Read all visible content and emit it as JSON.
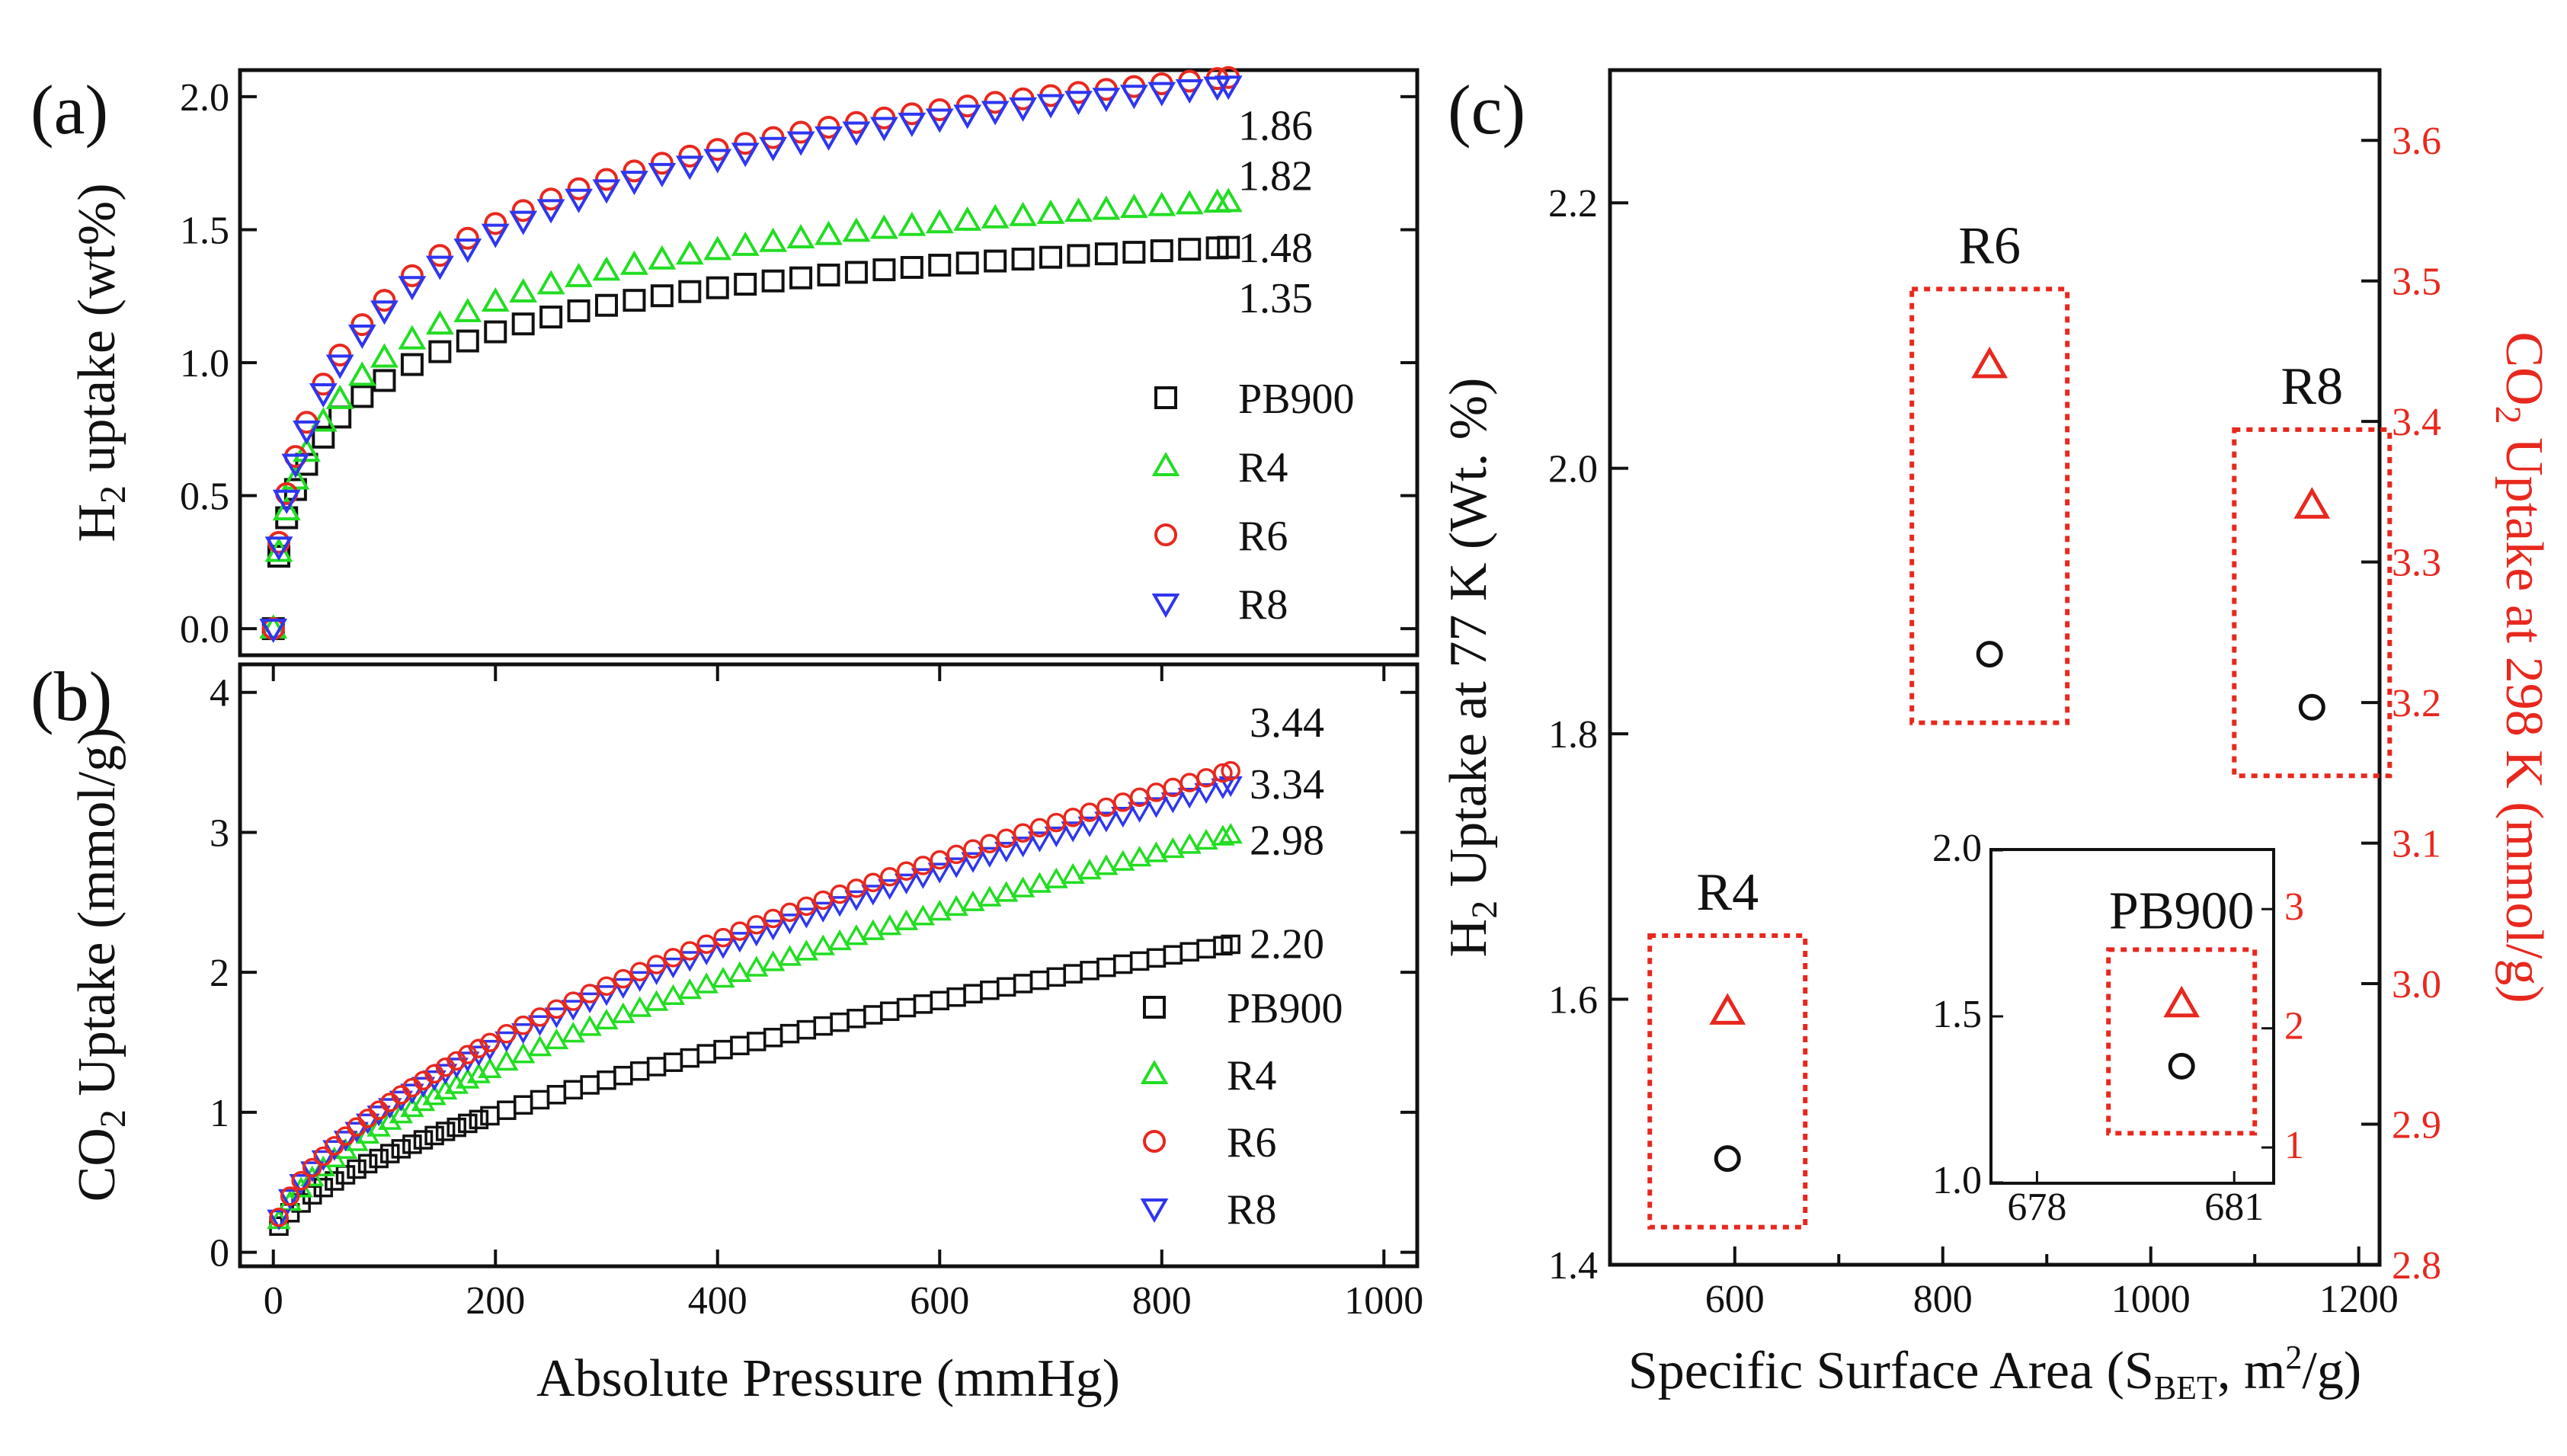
{
  "colors": {
    "PB900": "#111111",
    "R4": "#22dd22",
    "R6": "#e8281e",
    "R8": "#2e36f0",
    "box": "#e8281e",
    "axis_right": "#e8281e"
  },
  "chart_data": [
    {
      "id": "a",
      "type": "scatter",
      "panel_label": "(a)",
      "title": "",
      "xlabel": "",
      "ylabel": "H",
      "ylabel_sub": "2",
      "ylabel_rest": " uptake (wt%)",
      "xlim": [
        -30,
        1030
      ],
      "ylim": [
        -0.1,
        2.1
      ],
      "x_ticks": [],
      "y_ticks": [
        "0.0",
        "0.5",
        "1.0",
        "1.5",
        "2.0"
      ],
      "y_tick_values": [
        0.0,
        0.5,
        1.0,
        1.5,
        2.0
      ],
      "model": "langmuir-freundlich",
      "series": [
        {
          "name": "PB900",
          "marker": "square",
          "qmax": 1.8,
          "b": 0.0113,
          "n": 0.6,
          "end_label": "1.35"
        },
        {
          "name": "R4",
          "marker": "triangle-up",
          "qmax": 2.05,
          "b": 0.0098,
          "n": 0.6,
          "end_label": "1.48"
        },
        {
          "name": "R6",
          "marker": "circle",
          "qmax": 2.79,
          "b": 0.0068,
          "n": 0.6,
          "end_label": "1.86"
        },
        {
          "name": "R8",
          "marker": "triangle-down",
          "qmax": 2.79,
          "b": 0.0062,
          "n": 0.6,
          "end_label": "1.82"
        }
      ],
      "x_points": [
        0,
        5,
        12,
        20,
        30,
        45,
        60,
        80,
        100,
        125,
        150,
        175,
        200,
        225,
        250,
        275,
        300,
        325,
        350,
        375,
        400,
        425,
        450,
        475,
        500,
        525,
        550,
        575,
        600,
        625,
        650,
        675,
        700,
        725,
        750,
        775,
        800,
        825,
        850,
        860
      ],
      "end_values": [
        1.35,
        1.48,
        1.86,
        1.82
      ]
    },
    {
      "id": "b",
      "type": "scatter",
      "panel_label": "(b)",
      "title": "",
      "xlabel": "Absolute Pressure (mmHg)",
      "ylabel": "CO",
      "ylabel_sub": "2",
      "ylabel_rest": " Uptake (mmol/g)",
      "xlim": [
        -30,
        1030
      ],
      "ylim": [
        -0.1,
        4.2
      ],
      "x_ticks": [
        "0",
        "200",
        "400",
        "600",
        "800",
        "1000"
      ],
      "x_tick_values": [
        0,
        200,
        400,
        600,
        800,
        1000
      ],
      "y_ticks": [
        "0",
        "1",
        "2",
        "3",
        "4"
      ],
      "y_tick_values": [
        0,
        1,
        2,
        3,
        4
      ],
      "model": "power",
      "series": [
        {
          "name": "PB900",
          "marker": "square",
          "end": 2.2,
          "exponent": 0.58,
          "end_label": "2.20"
        },
        {
          "name": "R4",
          "marker": "triangle-up",
          "end": 2.98,
          "exponent": 0.58,
          "end_label": "2.98"
        },
        {
          "name": "R6",
          "marker": "circle",
          "end": 3.44,
          "exponent": 0.58,
          "end_label": "3.44"
        },
        {
          "name": "R8",
          "marker": "triangle-down",
          "end": 3.34,
          "exponent": 0.58,
          "end_label": "3.34"
        }
      ],
      "x_points": [
        5,
        15,
        25,
        35,
        45,
        55,
        65,
        75,
        85,
        95,
        105,
        115,
        125,
        135,
        145,
        155,
        165,
        175,
        185,
        195,
        210,
        225,
        240,
        255,
        270,
        285,
        300,
        315,
        330,
        345,
        360,
        375,
        390,
        405,
        420,
        435,
        450,
        465,
        480,
        495,
        510,
        525,
        540,
        555,
        570,
        585,
        600,
        615,
        630,
        645,
        660,
        675,
        690,
        705,
        720,
        735,
        750,
        765,
        780,
        795,
        810,
        825,
        840,
        855,
        862
      ],
      "legend_order": [
        "PB900",
        "R4",
        "R6",
        "R8"
      ]
    },
    {
      "id": "c",
      "type": "scatter",
      "panel_label": "(c)",
      "xlabel": "Specific Surface Area (S",
      "xlabel_sub": "BET",
      "xlabel_rest": ", m",
      "xlabel_sup": "2",
      "xlabel_end": "/g)",
      "ylabel_left": "H",
      "ylabel_left_sub": "2",
      "ylabel_left_rest": " Uptake at 77 K (Wt. %)",
      "ylabel_right": "CO",
      "ylabel_right_sub": "2",
      "ylabel_right_rest": " Uptake at 298 K (mmol/g)",
      "xlim": [
        480,
        1220
      ],
      "ylim_left": [
        1.4,
        2.3
      ],
      "ylim_right": [
        2.8,
        3.65
      ],
      "x_ticks": [
        "600",
        "800",
        "1000",
        "1200"
      ],
      "x_tick_values": [
        600,
        800,
        1000,
        1200
      ],
      "y_left_ticks": [
        "1.4",
        "1.6",
        "1.8",
        "2.0",
        "2.2"
      ],
      "y_left_tick_values": [
        1.4,
        1.6,
        1.8,
        2.0,
        2.2
      ],
      "y_right_ticks": [
        "2.8",
        "2.9",
        "3.0",
        "3.1",
        "3.2",
        "3.3",
        "3.4",
        "3.5",
        "3.6"
      ],
      "y_right_tick_values": [
        2.8,
        2.9,
        3.0,
        3.1,
        3.2,
        3.3,
        3.4,
        3.5,
        3.6
      ],
      "points": [
        {
          "name": "R4",
          "sbet": 593,
          "h2": 1.48,
          "co2": 2.98
        },
        {
          "name": "R6",
          "sbet": 845,
          "h2": 1.86,
          "co2": 3.44
        },
        {
          "name": "R8",
          "sbet": 1155,
          "h2": 1.82,
          "co2": 3.34
        }
      ],
      "inset": {
        "name": "PB900",
        "xlim": [
          677.3,
          681.6
        ],
        "ylim_left": [
          1.0,
          2.0
        ],
        "ylim_right": [
          0.7,
          3.5
        ],
        "x_ticks": [
          "678",
          "681"
        ],
        "x_tick_values": [
          678,
          681
        ],
        "y_left_ticks": [
          "1.0",
          "1.5",
          "2.0"
        ],
        "y_left_tick_values": [
          1.0,
          1.5,
          2.0
        ],
        "y_right_ticks": [
          "1",
          "2",
          "3"
        ],
        "y_right_tick_values": [
          1,
          2,
          3
        ],
        "point": {
          "name": "PB900",
          "sbet": 680.2,
          "h2": 1.35,
          "co2": 2.2
        }
      }
    }
  ]
}
